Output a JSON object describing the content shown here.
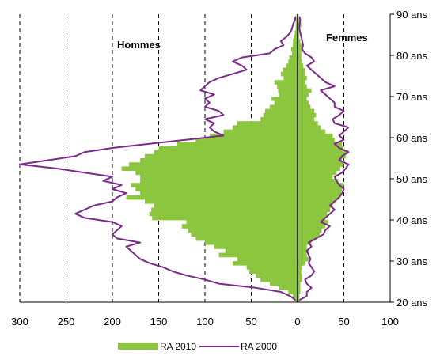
{
  "chart_data": {
    "type": "population-pyramid",
    "title": "",
    "xlabel": "",
    "ylabel": "",
    "xlim": [
      -300,
      100
    ],
    "ylim": [
      20,
      90
    ],
    "x_ticks": [
      -300,
      -250,
      -200,
      -150,
      -100,
      -50,
      0,
      50,
      100
    ],
    "x_tick_labels": [
      "300",
      "250",
      "200",
      "150",
      "100",
      "50",
      "0",
      "50",
      "100"
    ],
    "y_ticks": [
      20,
      30,
      40,
      50,
      60,
      70,
      80,
      90
    ],
    "y_tick_labels": [
      "20 ans",
      "30 ans",
      "40 ans",
      "50 ans",
      "60 ans",
      "70 ans",
      "80 ans",
      "90 ans"
    ],
    "vertical_gridlines": "dashed",
    "side_labels": {
      "left": "Hommes",
      "right": "Femmes"
    },
    "legend": {
      "position": "bottom",
      "entries": [
        "RA 2010",
        "RA 2000"
      ]
    },
    "colors": {
      "bars_2010": "#8cc63f",
      "line_2000": "#7b2a8c"
    },
    "ages": [
      20,
      21,
      22,
      23,
      24,
      25,
      26,
      27,
      28,
      29,
      30,
      31,
      32,
      33,
      34,
      35,
      36,
      37,
      38,
      39,
      40,
      41,
      42,
      43,
      44,
      45,
      46,
      47,
      48,
      49,
      50,
      51,
      52,
      53,
      54,
      55,
      56,
      57,
      58,
      59,
      60,
      61,
      62,
      63,
      64,
      65,
      66,
      67,
      68,
      69,
      70,
      71,
      72,
      73,
      74,
      75,
      76,
      77,
      78,
      79,
      80,
      81,
      82,
      83,
      84,
      85,
      86,
      87,
      88,
      89
    ],
    "series": [
      {
        "name": "RA 2010",
        "kind": "bars",
        "hommes": [
          2,
          5,
          10,
          20,
          30,
          40,
          45,
          52,
          55,
          70,
          65,
          85,
          78,
          90,
          100,
          110,
          115,
          118,
          125,
          120,
          157,
          160,
          158,
          155,
          165,
          185,
          170,
          175,
          180,
          170,
          170,
          175,
          190,
          182,
          170,
          165,
          155,
          150,
          130,
          110,
          95,
          80,
          70,
          65,
          40,
          37,
          35,
          30,
          25,
          28,
          20,
          21,
          22,
          25,
          15,
          18,
          16,
          12,
          10,
          9,
          6,
          7,
          5,
          5,
          4,
          3,
          2,
          2,
          2,
          1
        ],
        "femmes": [
          2,
          2,
          3,
          3,
          3,
          5,
          5,
          4,
          5,
          8,
          12,
          10,
          12,
          10,
          15,
          20,
          24,
          26,
          30,
          33,
          30,
          32,
          35,
          38,
          40,
          45,
          47,
          48,
          50,
          44,
          38,
          42,
          46,
          50,
          48,
          52,
          55,
          50,
          48,
          40,
          38,
          30,
          25,
          22,
          18,
          20,
          18,
          14,
          12,
          10,
          12,
          15,
          10,
          8,
          10,
          8,
          8,
          6,
          5,
          4,
          4,
          5,
          6,
          3,
          2,
          2,
          3,
          4,
          2,
          1
        ]
      },
      {
        "name": "RA 2000",
        "kind": "line",
        "hommes": [
          2,
          8,
          18,
          45,
          85,
          100,
          120,
          135,
          145,
          160,
          170,
          175,
          180,
          185,
          170,
          195,
          200,
          195,
          190,
          200,
          230,
          240,
          230,
          220,
          200,
          195,
          185,
          200,
          190,
          210,
          200,
          230,
          260,
          300,
          270,
          240,
          230,
          200,
          160,
          120,
          80,
          90,
          95,
          90,
          100,
          80,
          85,
          100,
          95,
          100,
          90,
          105,
          100,
          95,
          85,
          70,
          55,
          60,
          70,
          60,
          30,
          25,
          15,
          18,
          12,
          8,
          6,
          5,
          3,
          2
        ],
        "femmes": [
          2,
          10,
          10,
          15,
          10,
          8,
          15,
          18,
          15,
          12,
          14,
          12,
          10,
          15,
          12,
          20,
          28,
          30,
          35,
          25,
          30,
          35,
          40,
          35,
          40,
          45,
          48,
          50,
          45,
          42,
          40,
          48,
          52,
          55,
          45,
          48,
          55,
          45,
          40,
          50,
          45,
          50,
          55,
          40,
          38,
          45,
          50,
          40,
          40,
          35,
          30,
          25,
          40,
          30,
          25,
          20,
          15,
          10,
          18,
          15,
          8,
          5,
          6,
          5,
          4,
          3,
          2,
          2,
          3,
          2
        ]
      }
    ]
  }
}
